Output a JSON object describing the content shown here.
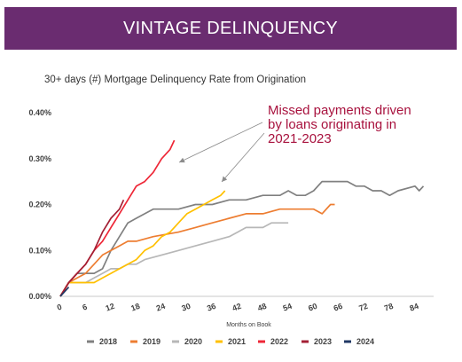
{
  "header": {
    "title": "VINTAGE DELINQUENCY"
  },
  "chart_data": {
    "type": "line",
    "title": "30+ days (#) Mortgage Delinquency Rate from Origination",
    "xlabel": "Months on Book",
    "ylabel": "",
    "xlim": [
      0,
      88
    ],
    "ylim": [
      0,
      0.4
    ],
    "x_ticks": [
      "0",
      "6",
      "12",
      "18",
      "24",
      "30",
      "36",
      "42",
      "48",
      "54",
      "60",
      "66",
      "72",
      "78",
      "84"
    ],
    "y_ticks": [
      "0.00%",
      "0.10%",
      "0.20%",
      "0.30%",
      "0.40%"
    ],
    "grid": false,
    "legend_position": "bottom",
    "annotation": {
      "lines": [
        "Missed payments driven",
        "by loans originating in",
        "2021-2023"
      ],
      "color": "#a8123e"
    },
    "series": [
      {
        "name": "2018",
        "color": "#808080",
        "points": [
          [
            0,
            0
          ],
          [
            2,
            0.03
          ],
          [
            4,
            0.05
          ],
          [
            6,
            0.05
          ],
          [
            8,
            0.05
          ],
          [
            10,
            0.06
          ],
          [
            12,
            0.1
          ],
          [
            14,
            0.13
          ],
          [
            16,
            0.16
          ],
          [
            18,
            0.17
          ],
          [
            20,
            0.18
          ],
          [
            22,
            0.19
          ],
          [
            24,
            0.19
          ],
          [
            28,
            0.19
          ],
          [
            32,
            0.2
          ],
          [
            36,
            0.2
          ],
          [
            40,
            0.21
          ],
          [
            44,
            0.21
          ],
          [
            48,
            0.22
          ],
          [
            52,
            0.22
          ],
          [
            54,
            0.23
          ],
          [
            56,
            0.22
          ],
          [
            58,
            0.22
          ],
          [
            60,
            0.23
          ],
          [
            62,
            0.25
          ],
          [
            64,
            0.25
          ],
          [
            68,
            0.25
          ],
          [
            70,
            0.24
          ],
          [
            72,
            0.24
          ],
          [
            74,
            0.23
          ],
          [
            76,
            0.23
          ],
          [
            78,
            0.22
          ],
          [
            80,
            0.23
          ],
          [
            84,
            0.24
          ],
          [
            85,
            0.23
          ],
          [
            86,
            0.24
          ]
        ]
      },
      {
        "name": "2019",
        "color": "#ed7d31",
        "points": [
          [
            0,
            0
          ],
          [
            2,
            0.03
          ],
          [
            4,
            0.04
          ],
          [
            6,
            0.05
          ],
          [
            8,
            0.07
          ],
          [
            10,
            0.09
          ],
          [
            12,
            0.1
          ],
          [
            14,
            0.11
          ],
          [
            16,
            0.12
          ],
          [
            18,
            0.12
          ],
          [
            22,
            0.13
          ],
          [
            28,
            0.14
          ],
          [
            32,
            0.15
          ],
          [
            36,
            0.16
          ],
          [
            40,
            0.17
          ],
          [
            44,
            0.18
          ],
          [
            48,
            0.18
          ],
          [
            52,
            0.19
          ],
          [
            56,
            0.19
          ],
          [
            60,
            0.19
          ],
          [
            62,
            0.18
          ],
          [
            64,
            0.2
          ],
          [
            65,
            0.2
          ]
        ]
      },
      {
        "name": "2020",
        "color": "#b7b7b7",
        "points": [
          [
            0,
            0
          ],
          [
            2,
            0.03
          ],
          [
            4,
            0.03
          ],
          [
            6,
            0.03
          ],
          [
            8,
            0.04
          ],
          [
            10,
            0.05
          ],
          [
            12,
            0.06
          ],
          [
            14,
            0.06
          ],
          [
            16,
            0.07
          ],
          [
            18,
            0.07
          ],
          [
            20,
            0.08
          ],
          [
            24,
            0.09
          ],
          [
            28,
            0.1
          ],
          [
            32,
            0.11
          ],
          [
            36,
            0.12
          ],
          [
            40,
            0.13
          ],
          [
            42,
            0.14
          ],
          [
            44,
            0.15
          ],
          [
            46,
            0.15
          ],
          [
            48,
            0.15
          ],
          [
            50,
            0.16
          ],
          [
            52,
            0.16
          ],
          [
            54,
            0.16
          ]
        ]
      },
      {
        "name": "2021",
        "color": "#ffc000",
        "points": [
          [
            0,
            0
          ],
          [
            2,
            0.03
          ],
          [
            4,
            0.03
          ],
          [
            6,
            0.03
          ],
          [
            8,
            0.03
          ],
          [
            10,
            0.04
          ],
          [
            12,
            0.05
          ],
          [
            14,
            0.06
          ],
          [
            16,
            0.07
          ],
          [
            18,
            0.08
          ],
          [
            20,
            0.1
          ],
          [
            22,
            0.11
          ],
          [
            24,
            0.13
          ],
          [
            26,
            0.14
          ],
          [
            28,
            0.16
          ],
          [
            30,
            0.18
          ],
          [
            32,
            0.19
          ],
          [
            34,
            0.2
          ],
          [
            36,
            0.21
          ],
          [
            38,
            0.22
          ],
          [
            39,
            0.23
          ]
        ]
      },
      {
        "name": "2022",
        "color": "#ee2737",
        "points": [
          [
            0,
            0
          ],
          [
            2,
            0.03
          ],
          [
            4,
            0.05
          ],
          [
            6,
            0.07
          ],
          [
            8,
            0.1
          ],
          [
            10,
            0.12
          ],
          [
            12,
            0.15
          ],
          [
            14,
            0.18
          ],
          [
            16,
            0.21
          ],
          [
            18,
            0.24
          ],
          [
            20,
            0.25
          ],
          [
            22,
            0.27
          ],
          [
            24,
            0.3
          ],
          [
            26,
            0.32
          ],
          [
            27,
            0.34
          ]
        ]
      },
      {
        "name": "2023",
        "color": "#a31f34",
        "points": [
          [
            0,
            0
          ],
          [
            2,
            0.03
          ],
          [
            4,
            0.05
          ],
          [
            6,
            0.07
          ],
          [
            8,
            0.1
          ],
          [
            10,
            0.14
          ],
          [
            12,
            0.17
          ],
          [
            14,
            0.19
          ],
          [
            15,
            0.21
          ]
        ]
      },
      {
        "name": "2024",
        "color": "#203864",
        "points": [
          [
            0,
            0
          ],
          [
            1,
            0.01
          ],
          [
            2,
            0.02
          ]
        ]
      }
    ]
  }
}
